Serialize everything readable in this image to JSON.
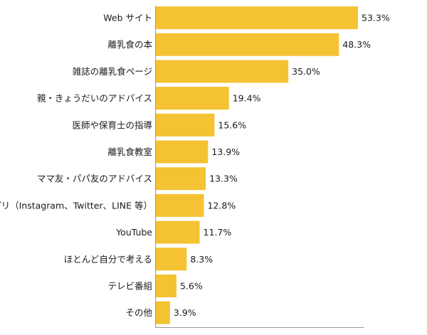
{
  "chart_data": {
    "type": "bar",
    "orientation": "horizontal",
    "categories": [
      "Web サイト",
      "離乳食の本",
      "雑誌の離乳食ページ",
      "親・きょうだいのアドバイス",
      "医師や保育士の指導",
      "離乳食教室",
      "ママ友・パパ友のアドバイス",
      "アプリ（Instagram、Twitter、LINE 等）",
      "YouTube",
      "ほとんど自分で考える",
      "テレビ番組",
      "その他"
    ],
    "values": [
      53.3,
      48.3,
      35.0,
      19.4,
      15.6,
      13.9,
      13.3,
      12.8,
      11.7,
      8.3,
      5.6,
      3.9
    ],
    "value_labels": [
      "53.3%",
      "48.3%",
      "35.0%",
      "19.4%",
      "15.6%",
      "13.9%",
      "13.3%",
      "12.8%",
      "11.7%",
      "8.3%",
      "5.6%",
      "3.9%"
    ],
    "unit": "%",
    "xlim": [
      0,
      53.3
    ],
    "bar_color": "#f4c232",
    "axis_color": "#999999",
    "grid": false,
    "legend": "none",
    "title": "",
    "xlabel": "",
    "ylabel": ""
  }
}
